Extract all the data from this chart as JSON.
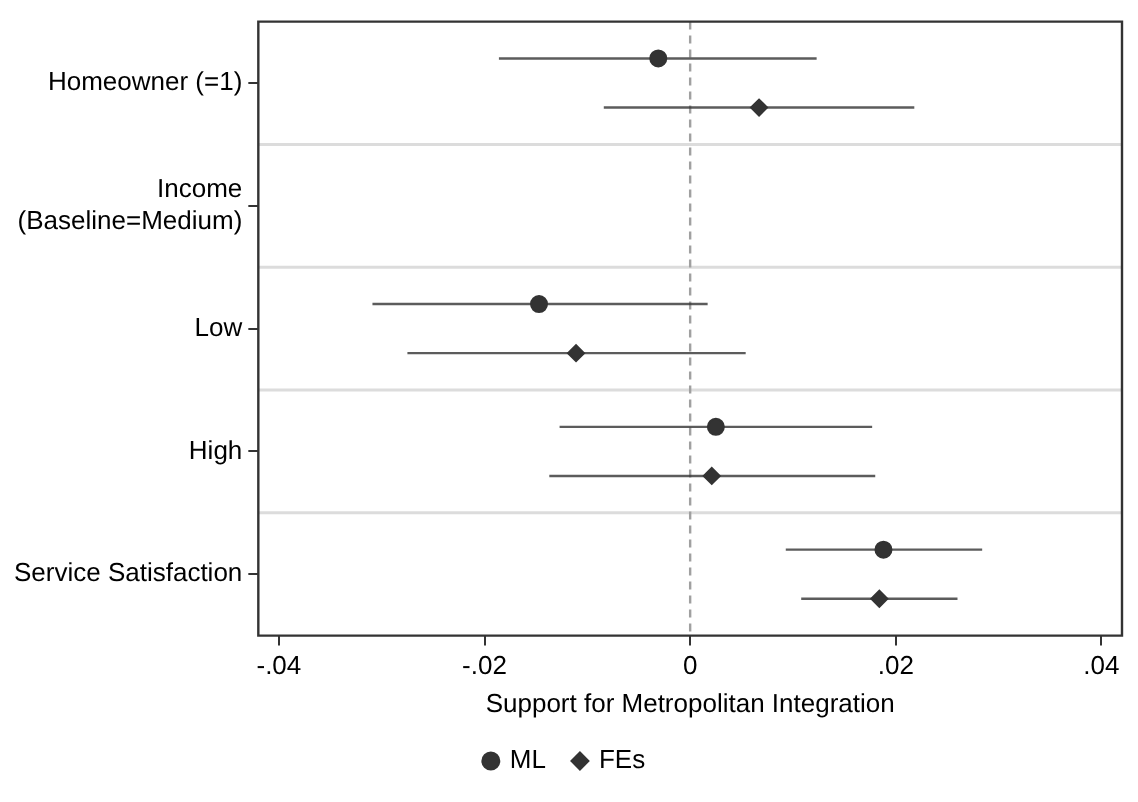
{
  "chart_data": {
    "type": "scatter",
    "orientation": "horizontal",
    "xlabel": "Support for Metropolitan Integration",
    "categories": [
      "Homeowner (=1)",
      "Income (Baseline=Medium)",
      "Low",
      "High",
      "Service Satisfaction"
    ],
    "series": [
      {
        "name": "ML",
        "color": "#333333",
        "marker": "circle",
        "values": [
          -0.0031,
          null,
          -0.0147,
          0.0025,
          0.0188
        ],
        "errors": [
          [
            -0.0186,
            0.0123
          ],
          null,
          [
            -0.0309,
            0.0017
          ],
          [
            -0.0127,
            0.0177
          ],
          [
            0.0093,
            0.0284
          ]
        ]
      },
      {
        "name": "FEs",
        "color": "#333333",
        "marker": "diamond",
        "values": [
          0.0067,
          null,
          -0.0111,
          0.0021,
          0.0184
        ],
        "errors": [
          [
            -0.0084,
            0.0218
          ],
          null,
          [
            -0.0275,
            0.0054
          ],
          [
            -0.0137,
            0.018
          ],
          [
            0.0108,
            0.026
          ]
        ]
      }
    ],
    "xlim": [
      -0.042,
      0.042
    ],
    "xticks": [
      {
        "value": -0.04,
        "label": "-.04"
      },
      {
        "value": -0.02,
        "label": "-.02"
      },
      0,
      {
        "value": 0.02,
        "label": ".02"
      },
      {
        "value": 0.04,
        "label": ".04"
      }
    ],
    "ref_lines": [
      {
        "axis": "x",
        "value": 0,
        "color": "#a0a0a0",
        "line_style": "dashed"
      }
    ],
    "grid": "y",
    "legend": "bottom"
  }
}
